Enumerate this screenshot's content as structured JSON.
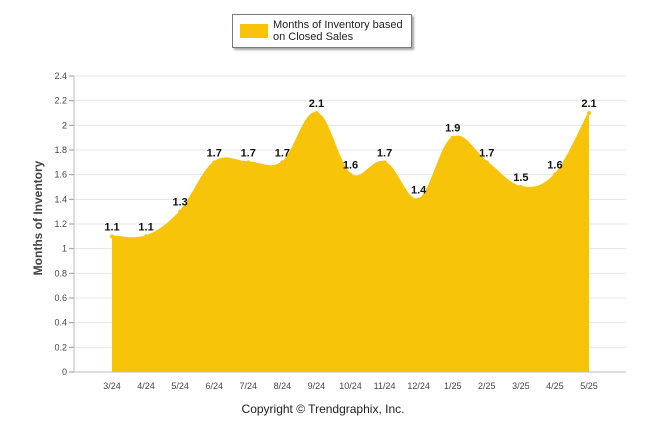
{
  "legend": {
    "label": "Months of Inventory based on Closed Sales"
  },
  "footer": {
    "copyright": "Copyright © Trendgraphix, Inc."
  },
  "colors": {
    "fill": "#f8c40a",
    "grid": "#e6e6e6",
    "axis_text": "#444444",
    "data_label": "#111111"
  },
  "chart_data": {
    "type": "area",
    "categories": [
      "3/24",
      "4/24",
      "5/24",
      "6/24",
      "7/24",
      "8/24",
      "9/24",
      "10/24",
      "11/24",
      "12/24",
      "1/25",
      "2/25",
      "3/25",
      "4/25",
      "5/25"
    ],
    "series": [
      {
        "name": "Months of Inventory based on Closed Sales",
        "values": [
          1.1,
          1.1,
          1.3,
          1.7,
          1.7,
          1.7,
          2.1,
          1.6,
          1.7,
          1.4,
          1.9,
          1.7,
          1.5,
          1.6,
          2.1
        ],
        "labels": [
          "1.1",
          "1.1",
          "1.3",
          "1.7",
          "1.7",
          "1.7",
          "2.1",
          "1.6",
          "1.7",
          "1.4",
          "1.9",
          "1.7",
          "1.5",
          "1.6",
          "2.1"
        ]
      }
    ],
    "ylabel": "Months of Inventory",
    "xlabel": "",
    "ylim": [
      0,
      2.4
    ],
    "yticks": [
      "0",
      "0.2",
      "0.4",
      "0.6",
      "0.8",
      "1",
      "1.2",
      "1.4",
      "1.6",
      "1.8",
      "2",
      "2.2",
      "2.4"
    ],
    "grid": true,
    "legend_position": "top-center"
  }
}
